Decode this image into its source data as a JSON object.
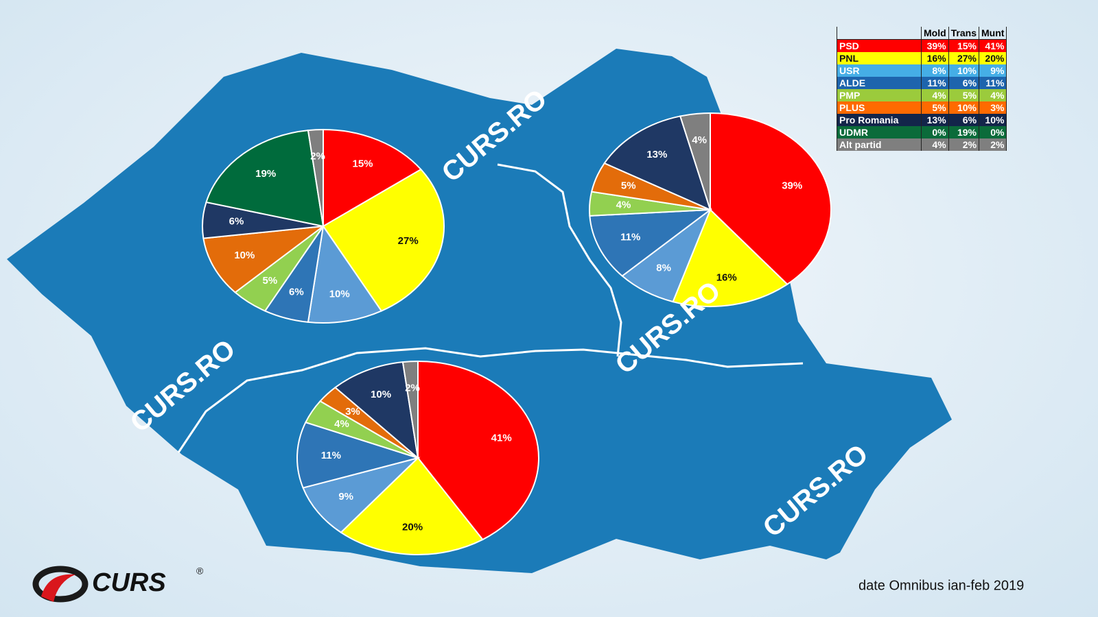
{
  "chart_data": [
    {
      "type": "pie",
      "values": [
        15,
        27,
        10,
        6,
        5,
        10,
        6,
        19,
        2
      ],
      "value_labels": [
        "15%",
        "27%",
        "10%",
        "6%",
        "5%",
        "10%",
        "6%",
        "19%",
        "2%"
      ],
      "colors": [
        "#ff0000",
        "#ffff00",
        "#5b9bd5",
        "#2e75b6",
        "#92d050",
        "#e36c0a",
        "#1f3864",
        "#006b3c",
        "#7f7f7f"
      ]
    },
    {
      "type": "pie",
      "values": [
        39,
        16,
        8,
        11,
        4,
        5,
        13,
        0,
        4
      ],
      "value_labels": [
        "39%",
        "16%",
        "8%",
        "11%",
        "4%",
        "5%",
        "13%",
        null,
        "4%"
      ],
      "colors": [
        "#ff0000",
        "#ffff00",
        "#5b9bd5",
        "#2e75b6",
        "#92d050",
        "#e36c0a",
        "#1f3864",
        "#006b3c",
        "#7f7f7f"
      ]
    },
    {
      "type": "pie",
      "values": [
        41,
        20,
        9,
        11,
        4,
        3,
        10,
        0,
        2
      ],
      "value_labels": [
        "41%",
        "20%",
        "9%",
        "11%",
        "4%",
        "3%",
        "10%",
        null,
        "2%"
      ],
      "colors": [
        "#ff0000",
        "#ffff00",
        "#5b9bd5",
        "#2e75b6",
        "#92d050",
        "#e36c0a",
        "#1f3864",
        "#006b3c",
        "#7f7f7f"
      ]
    }
  ],
  "table": {
    "columns": [
      "Mold",
      "Trans",
      "Munt"
    ],
    "rows": [
      {
        "party": "PSD",
        "color": "#ff0000",
        "cells": [
          "39%",
          "15%",
          "41%"
        ]
      },
      {
        "party": "PNL",
        "color": "#ffff00",
        "cells": [
          "16%",
          "27%",
          "20%"
        ]
      },
      {
        "party": "USR",
        "color": "#45aee6",
        "cells": [
          "8%",
          "10%",
          "9%"
        ]
      },
      {
        "party": "ALDE",
        "color": "#1d64ad",
        "cells": [
          "11%",
          "6%",
          "11%"
        ]
      },
      {
        "party": "PMP",
        "color": "#9bcb3c",
        "cells": [
          "4%",
          "5%",
          "4%"
        ]
      },
      {
        "party": "PLUS",
        "color": "#ff6a00",
        "cells": [
          "5%",
          "10%",
          "3%"
        ]
      },
      {
        "party": "Pro Romania",
        "color": "#13254a",
        "cells": [
          "13%",
          "6%",
          "10%"
        ]
      },
      {
        "party": "UDMR",
        "color": "#0b6b3a",
        "cells": [
          "0%",
          "19%",
          "0%"
        ]
      },
      {
        "party": "Alt partid",
        "color": "#7f7f7f",
        "cells": [
          "4%",
          "2%",
          "2%"
        ]
      }
    ]
  },
  "watermark": "CURS.RO",
  "logo": "CURS",
  "logo_mark": "®",
  "footnote": "date Omnibus ian-feb 2019"
}
